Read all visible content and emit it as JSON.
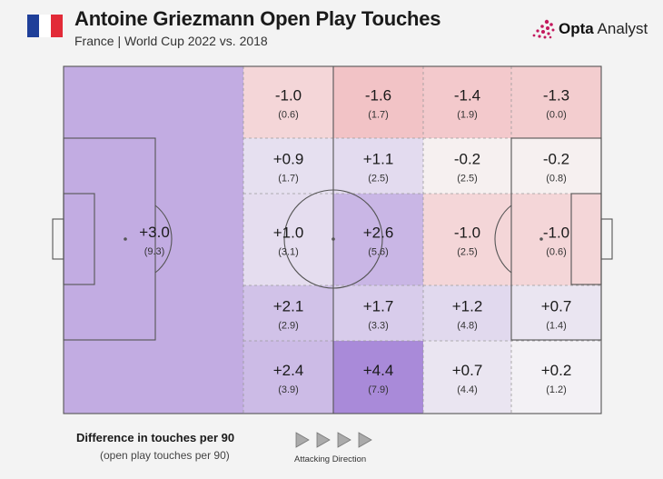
{
  "header": {
    "title": "Antoine Griezmann Open Play Touches",
    "subtitle": "France | World Cup 2022 vs. 2018",
    "flag_colors": [
      "#1f3f99",
      "#ffffff",
      "#e22a37"
    ],
    "brand_name_bold": "Opta",
    "brand_name_rest": " Analyst",
    "brand_color": "#c3195d"
  },
  "chart_data": {
    "type": "heatmap",
    "value_label": "Difference in touches per 90",
    "secondary_label": "(open play touches per 90)",
    "direction_label": "Attacking Direction",
    "colors": {
      "positive": "#a98ad9",
      "negative": "#f2c3c6",
      "neutral": "#f6f6f6"
    },
    "zones": [
      {
        "zone": "defensive-third",
        "diff": "+3.0",
        "value": "(9.3)"
      },
      {
        "zone": "col1-row1",
        "diff": "-1.0",
        "value": "(0.6)"
      },
      {
        "zone": "col2-row1",
        "diff": "-1.6",
        "value": "(1.7)"
      },
      {
        "zone": "col3-row1",
        "diff": "-1.4",
        "value": "(1.9)"
      },
      {
        "zone": "col4-row1",
        "diff": "-1.3",
        "value": "(0.0)"
      },
      {
        "zone": "col1-row2",
        "diff": "+0.9",
        "value": "(1.7)"
      },
      {
        "zone": "col2-row2",
        "diff": "+1.1",
        "value": "(2.5)"
      },
      {
        "zone": "col3-row2",
        "diff": "-0.2",
        "value": "(2.5)"
      },
      {
        "zone": "col4-row2",
        "diff": "-0.2",
        "value": "(0.8)"
      },
      {
        "zone": "col1-row3",
        "diff": "+1.0",
        "value": "(3.1)"
      },
      {
        "zone": "col2-row3",
        "diff": "+2.6",
        "value": "(5.6)"
      },
      {
        "zone": "col3-row3",
        "diff": "-1.0",
        "value": "(2.5)"
      },
      {
        "zone": "col4-row3",
        "diff": "-1.0",
        "value": "(0.6)"
      },
      {
        "zone": "col1-row4",
        "diff": "+2.1",
        "value": "(2.9)"
      },
      {
        "zone": "col2-row4",
        "diff": "+1.7",
        "value": "(3.3)"
      },
      {
        "zone": "col3-row4",
        "diff": "+1.2",
        "value": "(4.8)"
      },
      {
        "zone": "col4-row4",
        "diff": "+0.7",
        "value": "(1.4)"
      },
      {
        "zone": "col1-row5",
        "diff": "+2.4",
        "value": "(3.9)"
      },
      {
        "zone": "col2-row5",
        "diff": "+4.4",
        "value": "(7.9)"
      },
      {
        "zone": "col3-row5",
        "diff": "+0.7",
        "value": "(4.4)"
      },
      {
        "zone": "col4-row5",
        "diff": "+0.2",
        "value": "(1.2)"
      }
    ]
  }
}
